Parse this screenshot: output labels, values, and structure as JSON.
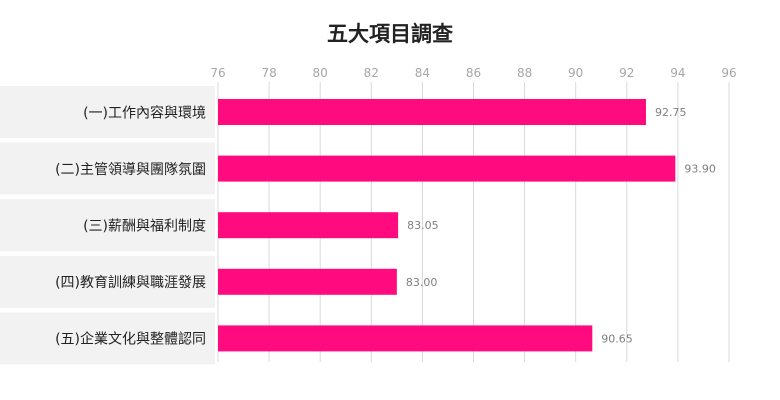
{
  "chart_data": {
    "type": "bar",
    "orientation": "horizontal",
    "title": "五大項目調查",
    "categories": [
      "(一)工作內容與環境",
      "(二)主管領導與團隊氛圍",
      "(三)薪酬與福利制度",
      "(四)教育訓練與職涯發展",
      "(五)企業文化與整體認同"
    ],
    "values": [
      92.75,
      93.9,
      83.05,
      83.0,
      90.65
    ],
    "value_labels": [
      "92.75",
      "93.90",
      "83.05",
      "83.00",
      "90.65"
    ],
    "xlim": [
      76,
      96
    ],
    "x_ticks": [
      "76",
      "78",
      "80",
      "82",
      "84",
      "86",
      "88",
      "90",
      "92",
      "94",
      "96"
    ],
    "xlabel": "",
    "ylabel": "",
    "grid": true,
    "legend": "none",
    "colors": {
      "bar": "#ff0a7f",
      "label_bg": "#f2f2f2",
      "grid": "#d9d9d9",
      "tick_text": "#a6a6a6",
      "value_text": "#7f7f7f"
    }
  }
}
